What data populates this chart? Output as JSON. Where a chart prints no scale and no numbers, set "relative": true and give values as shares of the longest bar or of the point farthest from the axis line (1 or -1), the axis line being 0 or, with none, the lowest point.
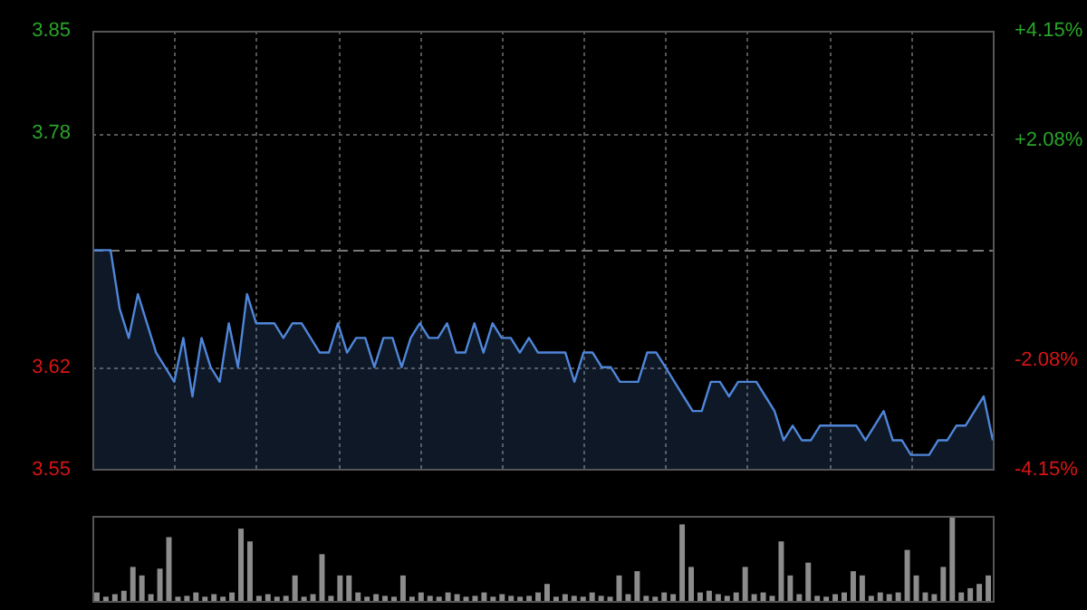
{
  "chart_data": [
    {
      "type": "area",
      "categories": [
        null,
        null,
        null,
        null,
        null,
        null,
        null,
        null,
        null,
        null,
        null,
        null,
        null,
        null,
        null,
        null,
        null,
        null,
        null,
        null,
        null,
        null,
        null,
        null,
        null,
        null,
        null,
        null,
        null,
        null,
        null,
        null,
        null,
        null,
        null,
        null,
        null,
        null,
        null,
        null,
        null,
        null,
        null,
        null,
        null,
        null,
        null,
        null,
        null,
        null,
        null,
        null,
        null,
        null,
        null,
        null,
        null,
        null,
        null,
        null,
        null,
        null,
        null,
        null,
        null,
        null,
        null,
        null,
        null,
        null,
        null,
        null,
        null,
        null,
        null,
        null,
        null,
        null,
        null,
        null,
        null,
        null,
        null,
        null,
        null,
        null,
        null,
        null,
        null,
        null,
        null,
        null,
        null,
        null,
        null,
        null,
        null,
        null,
        null,
        null
      ],
      "series": [
        {
          "color": "#4f86d9",
          "values": [
            3.7,
            3.7,
            3.7,
            3.66,
            3.64,
            3.67,
            3.65,
            3.63,
            3.62,
            3.61,
            3.64,
            3.6,
            3.64,
            3.62,
            3.61,
            3.65,
            3.62,
            3.67,
            3.65,
            3.65,
            3.65,
            3.64,
            3.65,
            3.65,
            3.64,
            3.63,
            3.63,
            3.65,
            3.63,
            3.64,
            3.64,
            3.62,
            3.64,
            3.64,
            3.62,
            3.64,
            3.65,
            3.64,
            3.64,
            3.65,
            3.63,
            3.63,
            3.65,
            3.63,
            3.65,
            3.64,
            3.64,
            3.63,
            3.64,
            3.63,
            3.63,
            3.63,
            3.63,
            3.61,
            3.63,
            3.63,
            3.62,
            3.62,
            3.61,
            3.61,
            3.61,
            3.63,
            3.63,
            3.62,
            3.61,
            3.6,
            3.59,
            3.59,
            3.61,
            3.61,
            3.6,
            3.61,
            3.61,
            3.61,
            3.6,
            3.59,
            3.57,
            3.58,
            3.57,
            3.57,
            3.58,
            3.58,
            3.58,
            3.58,
            3.58,
            3.57,
            3.58,
            3.59,
            3.57,
            3.57,
            3.56,
            3.56,
            3.56,
            3.57,
            3.57,
            3.58,
            3.58,
            3.59,
            3.6,
            3.57
          ]
        }
      ],
      "ylim": [
        3.55,
        3.85
      ],
      "yticks": [
        3.55,
        3.62,
        3.78,
        3.85
      ],
      "y2lim": [
        -4.15,
        4.15
      ],
      "y2ticks": [
        {
          "value": -4.15,
          "label": "-4.15%"
        },
        {
          "value": -2.08,
          "label": "-2.08%"
        },
        {
          "value": 2.08,
          "label": "+2.08%"
        },
        {
          "value": 4.15,
          "label": "+4.15%"
        }
      ],
      "ref_lines": [
        {
          "axis": "y",
          "value": 3.7,
          "line_style": "dashed"
        }
      ],
      "grid": true,
      "tick_labels": "y"
    },
    {
      "type": "bar",
      "relative": true,
      "categories": [
        null,
        null,
        null,
        null,
        null,
        null,
        null,
        null,
        null,
        null,
        null,
        null,
        null,
        null,
        null,
        null,
        null,
        null,
        null,
        null,
        null,
        null,
        null,
        null,
        null,
        null,
        null,
        null,
        null,
        null,
        null,
        null,
        null,
        null,
        null,
        null,
        null,
        null,
        null,
        null,
        null,
        null,
        null,
        null,
        null,
        null,
        null,
        null,
        null,
        null,
        null,
        null,
        null,
        null,
        null,
        null,
        null,
        null,
        null,
        null,
        null,
        null,
        null,
        null,
        null,
        null,
        null,
        null,
        null,
        null,
        null,
        null,
        null,
        null,
        null,
        null,
        null,
        null,
        null,
        null,
        null,
        null,
        null,
        null,
        null,
        null,
        null,
        null,
        null,
        null,
        null,
        null,
        null,
        null,
        null,
        null,
        null,
        null,
        null,
        null
      ],
      "series": [
        {
          "color": "#8c8c8c",
          "values": [
            0.1,
            0.05,
            0.08,
            0.12,
            0.4,
            0.3,
            0.08,
            0.38,
            0.75,
            0.05,
            0.06,
            0.1,
            0.05,
            0.08,
            0.05,
            0.1,
            0.85,
            0.7,
            0.06,
            0.08,
            0.05,
            0.06,
            0.3,
            0.05,
            0.08,
            0.55,
            0.06,
            0.3,
            0.3,
            0.1,
            0.05,
            0.08,
            0.06,
            0.05,
            0.3,
            0.05,
            0.1,
            0.06,
            0.05,
            0.1,
            0.08,
            0.05,
            0.06,
            0.1,
            0.05,
            0.08,
            0.06,
            0.05,
            0.06,
            0.1,
            0.2,
            0.05,
            0.08,
            0.06,
            0.05,
            0.1,
            0.06,
            0.05,
            0.3,
            0.08,
            0.35,
            0.06,
            0.05,
            0.1,
            0.08,
            0.9,
            0.4,
            0.1,
            0.12,
            0.08,
            0.06,
            0.1,
            0.4,
            0.08,
            0.1,
            0.06,
            0.7,
            0.3,
            0.08,
            0.45,
            0.06,
            0.05,
            0.08,
            0.1,
            0.35,
            0.3,
            0.06,
            0.1,
            0.08,
            0.1,
            0.6,
            0.3,
            0.1,
            0.08,
            0.4,
            1,
            0.1,
            0.15,
            0.2,
            0.3
          ]
        }
      ],
      "tick_labels": false
    }
  ]
}
